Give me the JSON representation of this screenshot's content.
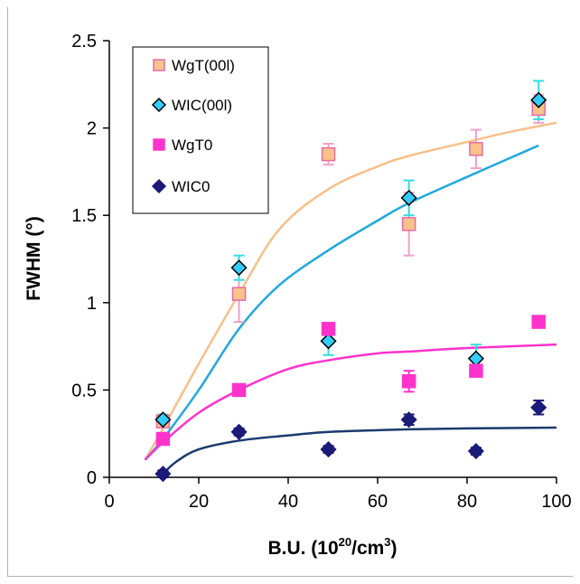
{
  "chart_data": {
    "type": "scatter",
    "xlabel": "B.U. (10",
    "xlabel_sup": "20",
    "xlabel_tail": "/cm",
    "xlabel_sup2": "3",
    "xlabel_end": ")",
    "ylabel": "FWHM (°)",
    "xlim": [
      0,
      100
    ],
    "ylim": [
      0,
      2.5
    ],
    "x_ticks": [
      "0",
      "20",
      "40",
      "60",
      "80",
      "100"
    ],
    "y_ticks": [
      "0",
      "0.5",
      "1",
      "1.5",
      "2",
      "2.5"
    ],
    "grid": false,
    "legend_position": "top-left",
    "series": [
      {
        "name": "WgT(00l)",
        "marker": "square",
        "fill": "#f8c38a",
        "stroke": "#e86aa8",
        "x": [
          12,
          29,
          49,
          67,
          82,
          96
        ],
        "y": [
          0.32,
          1.05,
          1.85,
          1.45,
          1.88,
          2.11
        ],
        "err": [
          0.02,
          0.16,
          0.06,
          0.18,
          0.11,
          0.08
        ],
        "err_color": "#f0a0c8",
        "fit_color": "#f8c08a",
        "fit_x": [
          8,
          12,
          20,
          29,
          38,
          49,
          60,
          67,
          80,
          90,
          100
        ],
        "fit_y": [
          0.1,
          0.28,
          0.65,
          1.05,
          1.42,
          1.65,
          1.78,
          1.84,
          1.92,
          1.98,
          2.03
        ]
      },
      {
        "name": "WIC(00l)",
        "marker": "diamond",
        "fill": "#33ccff",
        "stroke": "#000000",
        "x": [
          12,
          29,
          49,
          67,
          82,
          96
        ],
        "y": [
          0.33,
          1.2,
          0.78,
          1.6,
          0.68,
          2.16
        ],
        "err": [
          0.03,
          0.07,
          0.08,
          0.1,
          0.08,
          0.11
        ],
        "err_color": "#33dddd",
        "fit_color": "#22a8dd",
        "fit_x": [
          8,
          12,
          20,
          29,
          38,
          49,
          60,
          67,
          80,
          96
        ],
        "fit_y": [
          0.1,
          0.22,
          0.5,
          0.85,
          1.1,
          1.3,
          1.47,
          1.57,
          1.72,
          1.9
        ]
      },
      {
        "name": "WgT0",
        "marker": "square",
        "fill": "#ff33cc",
        "stroke": "#ff33cc",
        "x": [
          12,
          29,
          49,
          67,
          82,
          96
        ],
        "y": [
          0.22,
          0.5,
          0.85,
          0.55,
          0.61,
          0.89
        ],
        "err": [
          0.03,
          0.03,
          0.02,
          0.06,
          0.02,
          0.02
        ],
        "err_color": "#ff33cc",
        "fit_color": "#ff33cc",
        "fit_x": [
          8,
          12,
          20,
          29,
          40,
          49,
          60,
          67,
          80,
          100
        ],
        "fit_y": [
          0.1,
          0.2,
          0.37,
          0.5,
          0.62,
          0.67,
          0.71,
          0.72,
          0.74,
          0.76
        ]
      },
      {
        "name": "WIC0",
        "marker": "diamond",
        "fill": "#1a1a78",
        "stroke": "#1a1a78",
        "x": [
          12,
          29,
          49,
          67,
          82,
          96
        ],
        "y": [
          0.02,
          0.26,
          0.16,
          0.33,
          0.15,
          0.4
        ],
        "err": [
          0.02,
          0.02,
          0.02,
          0.03,
          0.02,
          0.04
        ],
        "err_color": "#1a1a78",
        "fit_color": "#1a3a6e",
        "fit_x": [
          12,
          15,
          20,
          29,
          40,
          49,
          60,
          67,
          80,
          100
        ],
        "fit_y": [
          0.02,
          0.09,
          0.16,
          0.21,
          0.24,
          0.26,
          0.27,
          0.275,
          0.28,
          0.285
        ]
      }
    ]
  }
}
